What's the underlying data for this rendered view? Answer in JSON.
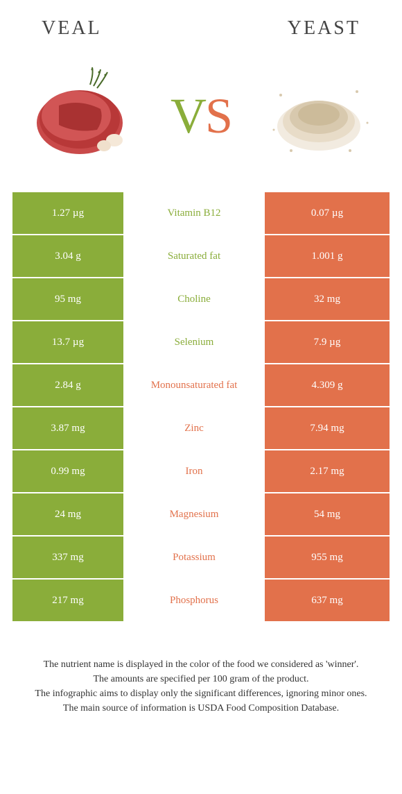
{
  "header": {
    "left_title": "VEAL",
    "right_title": "YEAST"
  },
  "vs": {
    "v": "V",
    "s": "S"
  },
  "colors": {
    "left": "#8aad3a",
    "right": "#e2714b",
    "text": "#333333",
    "bg": "#ffffff"
  },
  "rows": [
    {
      "left": "1.27 µg",
      "label": "Vitamin B12",
      "right": "0.07 µg",
      "winner": "left"
    },
    {
      "left": "3.04 g",
      "label": "Saturated fat",
      "right": "1.001 g",
      "winner": "left"
    },
    {
      "left": "95 mg",
      "label": "Choline",
      "right": "32 mg",
      "winner": "left"
    },
    {
      "left": "13.7 µg",
      "label": "Selenium",
      "right": "7.9 µg",
      "winner": "left"
    },
    {
      "left": "2.84 g",
      "label": "Monounsaturated fat",
      "right": "4.309 g",
      "winner": "right"
    },
    {
      "left": "3.87 mg",
      "label": "Zinc",
      "right": "7.94 mg",
      "winner": "right"
    },
    {
      "left": "0.99 mg",
      "label": "Iron",
      "right": "2.17 mg",
      "winner": "right"
    },
    {
      "left": "24 mg",
      "label": "Magnesium",
      "right": "54 mg",
      "winner": "right"
    },
    {
      "left": "337 mg",
      "label": "Potassium",
      "right": "955 mg",
      "winner": "right"
    },
    {
      "left": "217 mg",
      "label": "Phosphorus",
      "right": "637 mg",
      "winner": "right"
    }
  ],
  "footer": {
    "line1": "The nutrient name is displayed in the color of the food we considered as 'winner'.",
    "line2": "The amounts are specified per 100 gram of the product.",
    "line3": "The infographic aims to display only the significant differences, ignoring minor ones.",
    "line4": "The main source of information is USDA Food Composition Database."
  }
}
